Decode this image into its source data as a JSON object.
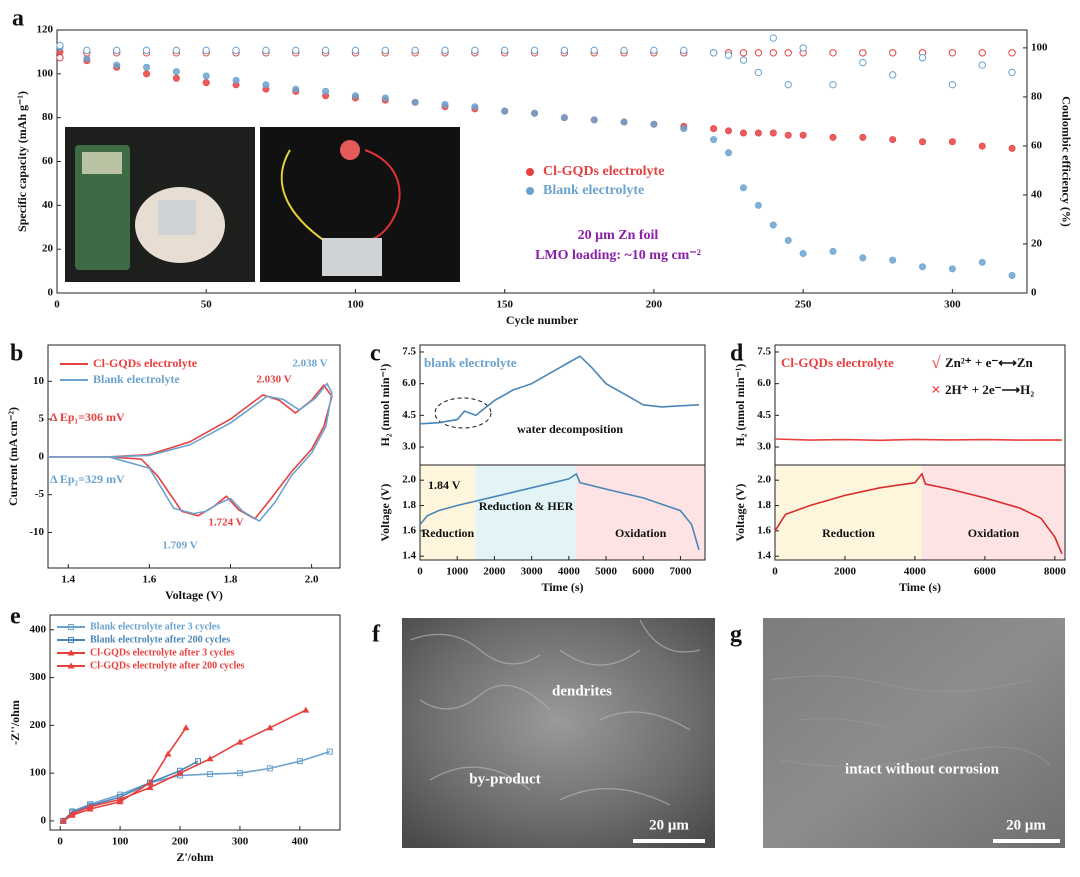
{
  "chart_data": [
    {
      "panel": "a",
      "type": "scatter",
      "xlabel": "Cycle number",
      "ylabel": "Specific capacity (mAh g⁻¹)",
      "y2label": "Coulombic efficiency (%)",
      "xlim": [
        0,
        325
      ],
      "xticks": [
        0,
        50,
        100,
        150,
        200,
        250,
        300
      ],
      "ylim": [
        0,
        120
      ],
      "yticks": [
        0,
        20,
        40,
        60,
        80,
        100,
        120
      ],
      "y2lim": [
        0,
        107.3
      ],
      "y2ticks": [
        0,
        20,
        40,
        60,
        80,
        100
      ],
      "x": [
        1,
        10,
        20,
        30,
        40,
        50,
        60,
        70,
        80,
        90,
        100,
        110,
        120,
        130,
        140,
        150,
        160,
        170,
        180,
        190,
        200,
        210,
        220,
        225,
        230,
        235,
        240,
        245,
        250,
        260,
        270,
        280,
        290,
        300,
        310,
        320
      ],
      "series": [
        {
          "name": "Cl-GQDs electrolyte",
          "color": "#e8403f",
          "filled": true,
          "values": [
            110,
            106,
            103,
            100,
            98,
            96,
            95,
            93,
            92,
            90,
            89,
            88,
            87,
            85,
            84,
            83,
            82,
            80,
            79,
            78,
            77,
            76,
            75,
            74,
            73,
            73,
            73,
            72,
            72,
            71,
            71,
            70,
            69,
            69,
            67,
            66
          ]
        },
        {
          "name": "Blank electrolyte",
          "color": "#6ba3cf",
          "filled": true,
          "values": [
            112,
            107,
            104,
            103,
            101,
            99,
            97,
            95,
            93,
            92,
            90,
            89,
            87,
            86,
            85,
            83,
            82,
            80,
            79,
            78,
            77,
            75,
            70,
            64,
            48,
            40,
            31,
            24,
            18,
            19,
            16,
            15,
            12,
            11,
            14,
            8
          ]
        },
        {
          "color": "#e8403f",
          "filled": false,
          "axis": "y2",
          "values": [
            96,
            98,
            98,
            98,
            98,
            98,
            98,
            98,
            98,
            98,
            98,
            98,
            98,
            98,
            98,
            98,
            98,
            98,
            98,
            98,
            98,
            98,
            98,
            98,
            98,
            98,
            98,
            98,
            98,
            98,
            98,
            98,
            98,
            98,
            98,
            98
          ]
        },
        {
          "color": "#6ba3cf",
          "filled": false,
          "axis": "y2",
          "values": [
            101,
            99,
            99,
            99,
            99,
            99,
            99,
            99,
            99,
            99,
            99,
            99,
            99,
            99,
            99,
            99,
            99,
            99,
            99,
            99,
            99,
            99,
            98,
            97,
            95,
            90,
            104,
            85,
            100,
            85,
            94,
            89,
            96,
            85,
            93,
            90
          ]
        }
      ],
      "annotations": [
        {
          "text": "20 μm Zn foil",
          "color": "#8b1fa8"
        },
        {
          "text": "LMO loading: ~10 mg cm⁻²",
          "color": "#8b1fa8"
        }
      ]
    },
    {
      "panel": "b",
      "type": "line",
      "xlabel": "Voltage (V)",
      "ylabel": "Current (mA cm⁻²)",
      "xlim": [
        1.35,
        2.07
      ],
      "xticks": [
        1.4,
        1.6,
        1.8,
        {
          "value": 2,
          "label": "2.0"
        }
      ],
      "ylim": [
        -14.7,
        14.8
      ],
      "yticks": [
        -10,
        -5,
        0,
        5,
        10
      ],
      "series": [
        {
          "name": "Cl-GQDs electrolyte",
          "color": "#e8403f",
          "x": [
            1.35,
            1.5,
            1.6,
            1.7,
            1.8,
            1.88,
            1.92,
            1.96,
            2.0,
            2.03,
            2.05,
            2.03,
            2.0,
            1.95,
            1.9,
            1.86,
            1.82,
            1.79,
            1.76,
            1.72,
            1.68,
            1.62,
            1.58,
            1.5,
            1.35
          ],
          "values": [
            0,
            0,
            0.3,
            2,
            5,
            8.2,
            7.5,
            5.8,
            7.5,
            9.5,
            8,
            4,
            1,
            -2,
            -5.5,
            -8.2,
            -7,
            -5.2,
            -6.5,
            -7.8,
            -7.2,
            -2.5,
            -0.3,
            0,
            0
          ]
        },
        {
          "name": "Blank electrolyte",
          "color": "#6ba3cf",
          "x": [
            1.35,
            1.5,
            1.6,
            1.7,
            1.8,
            1.89,
            1.93,
            1.97,
            2.01,
            2.038,
            2.05,
            2.035,
            2.0,
            1.95,
            1.91,
            1.871,
            1.83,
            1.8,
            1.77,
            1.74,
            1.709,
            1.66,
            1.6,
            1.5,
            1.35
          ],
          "values": [
            0,
            0,
            0.2,
            1.6,
            4.5,
            8,
            7.6,
            6.2,
            7.8,
            9.7,
            8.5,
            4,
            0.5,
            -2.5,
            -6,
            -8.5,
            -7.2,
            -5.5,
            -6.2,
            -7.2,
            -7.5,
            -6.8,
            -1.5,
            0,
            0
          ]
        }
      ],
      "annotations": [
        {
          "text": "2.030 V",
          "color": "#e8403f"
        },
        {
          "text": "2.038 V",
          "color": "#6ba3cf"
        },
        {
          "text": "Δ Ep₁=306 mV",
          "color": "#e8403f"
        },
        {
          "text": "Δ Ep₂=329 mV",
          "color": "#6ba3cf"
        },
        {
          "text": "1.709 V",
          "color": "#6ba3cf"
        },
        {
          "text": "1.724 V",
          "color": "#e8403f"
        }
      ]
    },
    {
      "panel": "c",
      "type": "line",
      "ylabel": "H₂ (nmol min⁻¹)",
      "xlim": [
        0,
        7660
      ],
      "ylim": [
        2.15,
        7.83
      ],
      "yticks": [
        {
          "value": 3,
          "label": "3.0"
        },
        4.5,
        {
          "value": 6,
          "label": "6.0"
        },
        7.5
      ],
      "x": [
        0,
        500,
        1000,
        1200,
        1500,
        2000,
        2500,
        3000,
        3500,
        4000,
        4300,
        4600,
        5000,
        5500,
        6000,
        6500,
        7000,
        7500
      ],
      "series": [
        {
          "color": "#4a86b8",
          "values": [
            4.1,
            4.15,
            4.3,
            4.7,
            4.5,
            5.2,
            5.7,
            6.0,
            6.5,
            7.0,
            7.3,
            6.8,
            6.0,
            5.5,
            5.0,
            4.9,
            4.95,
            5.0
          ]
        }
      ],
      "annotations": [
        {
          "text": "blank electrolyte",
          "color": "#6ba3cf"
        },
        {
          "text": "water decomposition",
          "color": "#111111"
        }
      ]
    },
    {
      "type": "line",
      "xlabel": "Time (s)",
      "ylabel": "Voltage (V)",
      "xlim": [
        0,
        7660
      ],
      "xticks": [
        0,
        1000,
        2000,
        3000,
        4000,
        5000,
        6000,
        7000
      ],
      "ylim": [
        1.37,
        2.12
      ],
      "yticks": [
        1.4,
        1.6,
        1.8,
        {
          "value": 2,
          "label": "2.0"
        }
      ],
      "x": [
        0,
        200,
        500,
        1000,
        2000,
        3000,
        4000,
        4200,
        4300,
        5000,
        6000,
        7000,
        7300,
        7500
      ],
      "series": [
        {
          "color": "#4a86b8",
          "values": [
            1.65,
            1.72,
            1.76,
            1.8,
            1.87,
            1.94,
            2.01,
            2.05,
            1.98,
            1.93,
            1.86,
            1.76,
            1.65,
            1.45
          ]
        }
      ],
      "regions": [
        {
          "label": "Reduction",
          "xrange": [
            0,
            1500
          ],
          "color": "#fdf6dc"
        },
        {
          "label": "Reduction & HER",
          "xrange": [
            1500,
            4200
          ],
          "color": "#e3f4f7"
        },
        {
          "label": "Oxidation",
          "xrange": [
            4200,
            7660
          ],
          "color": "#fde3e3"
        }
      ],
      "annotations": [
        {
          "text": "1.84 V",
          "color": "#111111"
        }
      ]
    },
    {
      "panel": "d",
      "type": "line",
      "ylabel": "H₂ (nmol min⁻¹)",
      "xlim": [
        0,
        8290
      ],
      "ylim": [
        2.15,
        7.83
      ],
      "yticks": [
        {
          "value": 3,
          "label": "3.0"
        },
        4.5,
        {
          "value": 6,
          "label": "6.0"
        },
        7.5
      ],
      "x": [
        0,
        1000,
        2000,
        3000,
        4000,
        5000,
        6000,
        7000,
        8000,
        8200
      ],
      "series": [
        {
          "color": "#e8403f",
          "values": [
            3.38,
            3.33,
            3.35,
            3.32,
            3.36,
            3.34,
            3.35,
            3.33,
            3.34,
            3.33
          ]
        }
      ],
      "annotations": [
        {
          "text": "Cl-GQDs electrolyte",
          "color": "#e8403f"
        },
        {
          "text": "√",
          "color": "#e8403f"
        },
        {
          "text": "Zn²⁺ + e⁻⟷Zn",
          "color": "#111111"
        },
        {
          "text": "×",
          "color": "#e8403f"
        },
        {
          "text": "2H⁺ + 2e⁻⟶H₂",
          "color": "#111111"
        }
      ]
    },
    {
      "type": "line",
      "xlabel": "Time (s)",
      "ylabel": "Voltage (V)",
      "xlim": [
        0,
        8290
      ],
      "xticks": [
        0,
        2000,
        4000,
        6000,
        8000
      ],
      "ylim": [
        1.37,
        2.12
      ],
      "yticks": [
        1.4,
        1.6,
        1.8,
        {
          "value": 2,
          "label": "2.0"
        }
      ],
      "x": [
        0,
        300,
        1000,
        2000,
        3000,
        4000,
        4200,
        4300,
        5000,
        6000,
        7000,
        7600,
        8000,
        8200
      ],
      "series": [
        {
          "color": "#d92b2b",
          "values": [
            1.6,
            1.73,
            1.8,
            1.88,
            1.94,
            1.98,
            2.05,
            1.97,
            1.93,
            1.86,
            1.78,
            1.7,
            1.55,
            1.42
          ]
        }
      ],
      "regions": [
        {
          "label": "Reduction",
          "xrange": [
            0,
            4200
          ],
          "color": "#fdf6dc"
        },
        {
          "label": "Oxidation",
          "xrange": [
            4200,
            8290
          ],
          "color": "#fde3e3"
        }
      ]
    },
    {
      "panel": "e",
      "type": "line",
      "markers": true,
      "xlabel": "Z'/ohm",
      "ylabel": "-Z''/ohm",
      "xlim": [
        -17,
        467
      ],
      "xticks": [
        0,
        100,
        200,
        300,
        400
      ],
      "ylim": [
        -19,
        431
      ],
      "yticks": [
        0,
        100,
        200,
        300,
        400
      ],
      "series": [
        {
          "name": "Blank electrolyte after 3 cycles",
          "color": "#6ba3cf",
          "marker": "square",
          "x": [
            5,
            20,
            50,
            100,
            150,
            200,
            250,
            300,
            350,
            400,
            450
          ],
          "values": [
            0,
            20,
            35,
            55,
            80,
            95,
            98,
            100,
            110,
            125,
            145
          ]
        },
        {
          "name": "Blank electrolyte after 200 cycles",
          "color": "#4a86b8",
          "marker": "square",
          "x": [
            5,
            20,
            50,
            100,
            150,
            200,
            230
          ],
          "values": [
            0,
            18,
            32,
            50,
            80,
            105,
            125
          ]
        },
        {
          "name": "Cl-GQDs electrolyte after 3 cycles",
          "color": "#e8403f",
          "marker": "triangle",
          "x": [
            5,
            20,
            50,
            100,
            150,
            200,
            250,
            300,
            350,
            410
          ],
          "values": [
            0,
            15,
            30,
            45,
            70,
            100,
            130,
            165,
            195,
            232
          ]
        },
        {
          "name": "Cl-GQDs electrolyte after 200 cycles",
          "color": "#e8403f",
          "marker": "triangle",
          "x": [
            5,
            20,
            50,
            100,
            150,
            180,
            210
          ],
          "values": [
            0,
            12,
            25,
            40,
            80,
            140,
            195
          ]
        }
      ]
    }
  ],
  "images": [
    {
      "panel": "f",
      "annotations": [
        "dendrites",
        "by-product"
      ],
      "scale_bar": "20 μm"
    },
    {
      "panel": "g",
      "annotations": [
        "intact without corrosion"
      ],
      "scale_bar": "20 μm"
    }
  ]
}
